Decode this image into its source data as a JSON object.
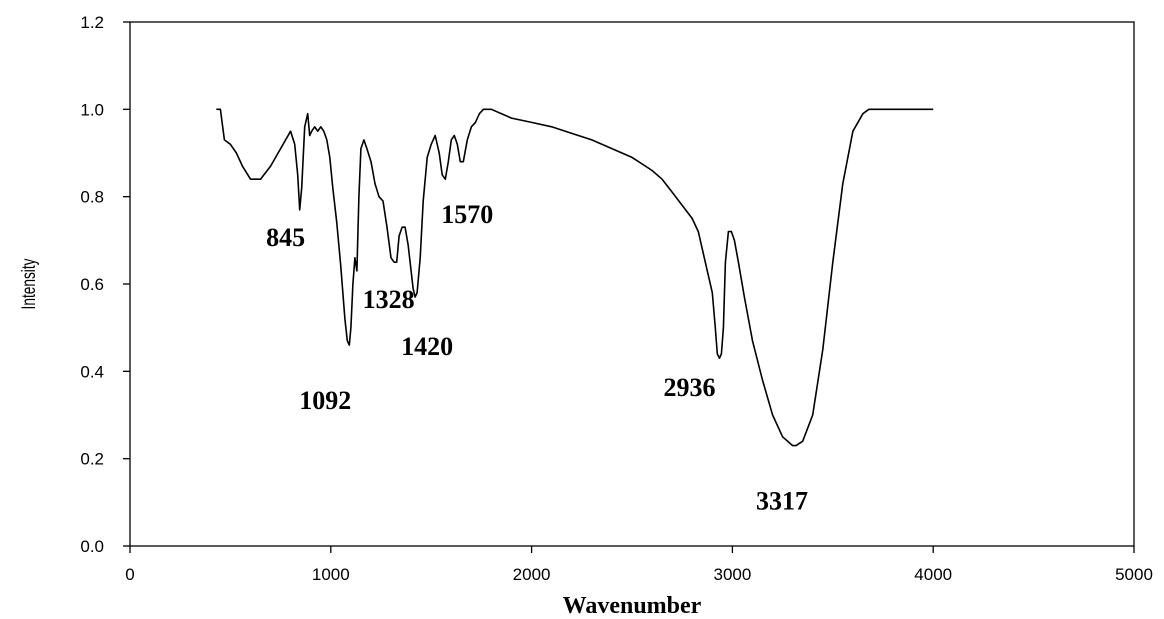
{
  "chart_data": {
    "type": "line",
    "title": "",
    "xlabel": "Wavenumber",
    "ylabel": "Intensity",
    "xlim": [
      0,
      5000
    ],
    "ylim": [
      0.0,
      1.2
    ],
    "grid": false,
    "x_ticks": [
      0,
      1000,
      2000,
      3000,
      4000,
      5000
    ],
    "x_tick_labels": [
      "0",
      "1000",
      "2000",
      "3000",
      "4000",
      "5000"
    ],
    "y_ticks": [
      0.0,
      0.2,
      0.4,
      0.6,
      0.8,
      1.0,
      1.2
    ],
    "y_tick_labels": [
      "0.0",
      "0.2",
      "0.4",
      "0.6",
      "0.8",
      "1.0",
      "1.2"
    ],
    "series": [
      {
        "color": "#000000",
        "x": [
          430,
          450,
          470,
          500,
          530,
          560,
          600,
          650,
          700,
          750,
          800,
          820,
          835,
          845,
          855,
          870,
          885,
          895,
          905,
          920,
          935,
          950,
          965,
          980,
          995,
          1010,
          1030,
          1050,
          1070,
          1082,
          1092,
          1100,
          1110,
          1120,
          1130,
          1140,
          1150,
          1165,
          1180,
          1200,
          1220,
          1240,
          1260,
          1280,
          1300,
          1315,
          1328,
          1340,
          1355,
          1370,
          1385,
          1400,
          1410,
          1420,
          1430,
          1445,
          1460,
          1480,
          1500,
          1520,
          1540,
          1555,
          1570,
          1585,
          1600,
          1615,
          1630,
          1645,
          1660,
          1680,
          1700,
          1720,
          1740,
          1760,
          1800,
          1900,
          2000,
          2100,
          2200,
          2300,
          2400,
          2500,
          2600,
          2650,
          2700,
          2750,
          2800,
          2830,
          2860,
          2880,
          2900,
          2915,
          2925,
          2936,
          2945,
          2955,
          2965,
          2980,
          2995,
          3010,
          3030,
          3060,
          3100,
          3150,
          3200,
          3250,
          3300,
          3317,
          3350,
          3400,
          3450,
          3500,
          3550,
          3600,
          3650,
          3680,
          3700,
          3750,
          3800,
          3900,
          4000
        ],
        "y": [
          1.0,
          1.0,
          0.93,
          0.92,
          0.9,
          0.87,
          0.84,
          0.84,
          0.87,
          0.91,
          0.95,
          0.92,
          0.85,
          0.77,
          0.82,
          0.96,
          0.99,
          0.94,
          0.95,
          0.96,
          0.95,
          0.96,
          0.95,
          0.93,
          0.89,
          0.82,
          0.74,
          0.64,
          0.52,
          0.47,
          0.46,
          0.5,
          0.6,
          0.66,
          0.63,
          0.8,
          0.91,
          0.93,
          0.91,
          0.88,
          0.83,
          0.8,
          0.79,
          0.73,
          0.66,
          0.65,
          0.65,
          0.71,
          0.73,
          0.73,
          0.69,
          0.63,
          0.59,
          0.57,
          0.58,
          0.66,
          0.79,
          0.89,
          0.92,
          0.94,
          0.9,
          0.85,
          0.84,
          0.88,
          0.93,
          0.94,
          0.92,
          0.88,
          0.88,
          0.93,
          0.96,
          0.97,
          0.99,
          1.0,
          1.0,
          0.98,
          0.97,
          0.96,
          0.945,
          0.93,
          0.91,
          0.89,
          0.86,
          0.84,
          0.81,
          0.78,
          0.75,
          0.72,
          0.66,
          0.62,
          0.58,
          0.5,
          0.44,
          0.43,
          0.44,
          0.5,
          0.65,
          0.72,
          0.72,
          0.7,
          0.65,
          0.57,
          0.47,
          0.38,
          0.3,
          0.25,
          0.23,
          0.23,
          0.24,
          0.3,
          0.45,
          0.65,
          0.83,
          0.95,
          0.99,
          1.0,
          1.0,
          1.0,
          1.0,
          1.0,
          1.0
        ]
      }
    ],
    "annotations": [
      {
        "text": "845",
        "x": 845,
        "y": 0.77
      },
      {
        "text": "1092",
        "x": 1092,
        "y": 0.46
      },
      {
        "text": "1328",
        "x": 1328,
        "y": 0.65
      },
      {
        "text": "1420",
        "x": 1420,
        "y": 0.57
      },
      {
        "text": "1570",
        "x": 1570,
        "y": 0.84
      },
      {
        "text": "2936",
        "x": 2936,
        "y": 0.43
      },
      {
        "text": "3317",
        "x": 3317,
        "y": 0.23
      }
    ]
  }
}
